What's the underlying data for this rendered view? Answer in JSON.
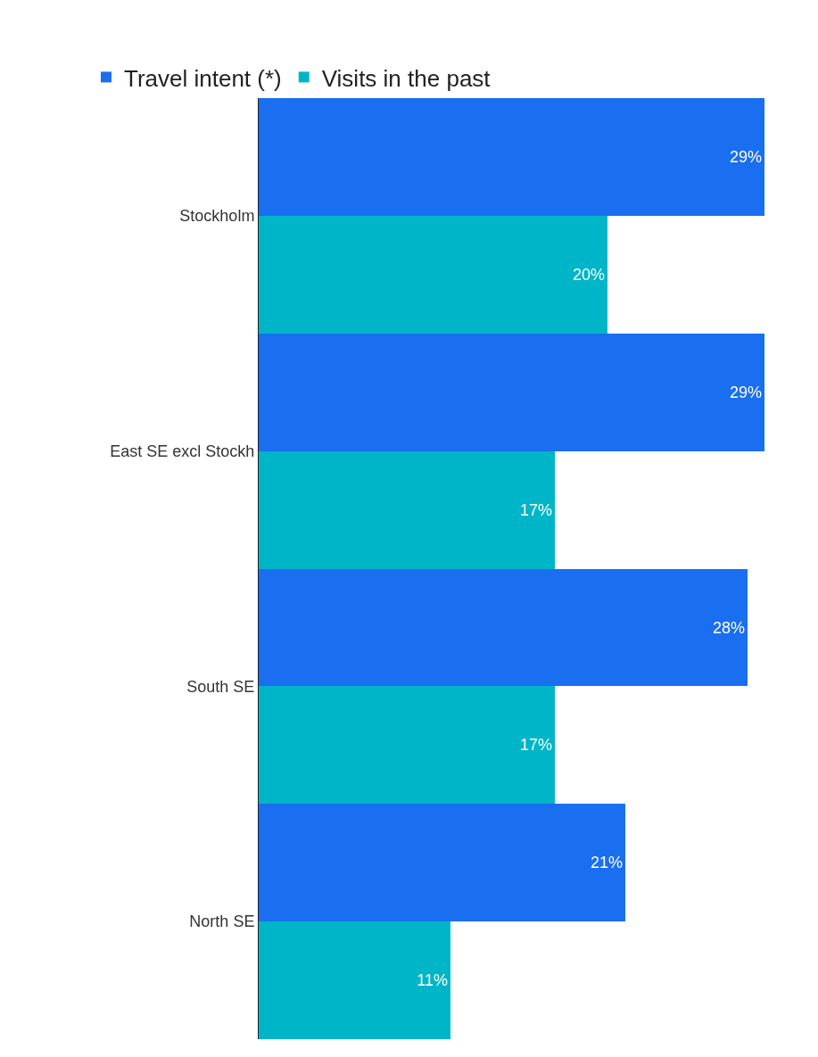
{
  "chart_data": {
    "type": "bar",
    "orientation": "horizontal",
    "categories": [
      "Stockholm",
      "East SE excl Stockh",
      "South SE",
      "North SE"
    ],
    "series": [
      {
        "name": "Travel intent (*)",
        "color": "#1a6ef0",
        "values": [
          29,
          29,
          28,
          21
        ],
        "value_labels": [
          "29%",
          "29%",
          "28%",
          "21%"
        ]
      },
      {
        "name": "Visits in the past",
        "color": "#00b5c8",
        "values": [
          20,
          17,
          17,
          11
        ],
        "value_labels": [
          "20%",
          "17%",
          "17%",
          "11%"
        ]
      }
    ],
    "legend": "top left"
  }
}
